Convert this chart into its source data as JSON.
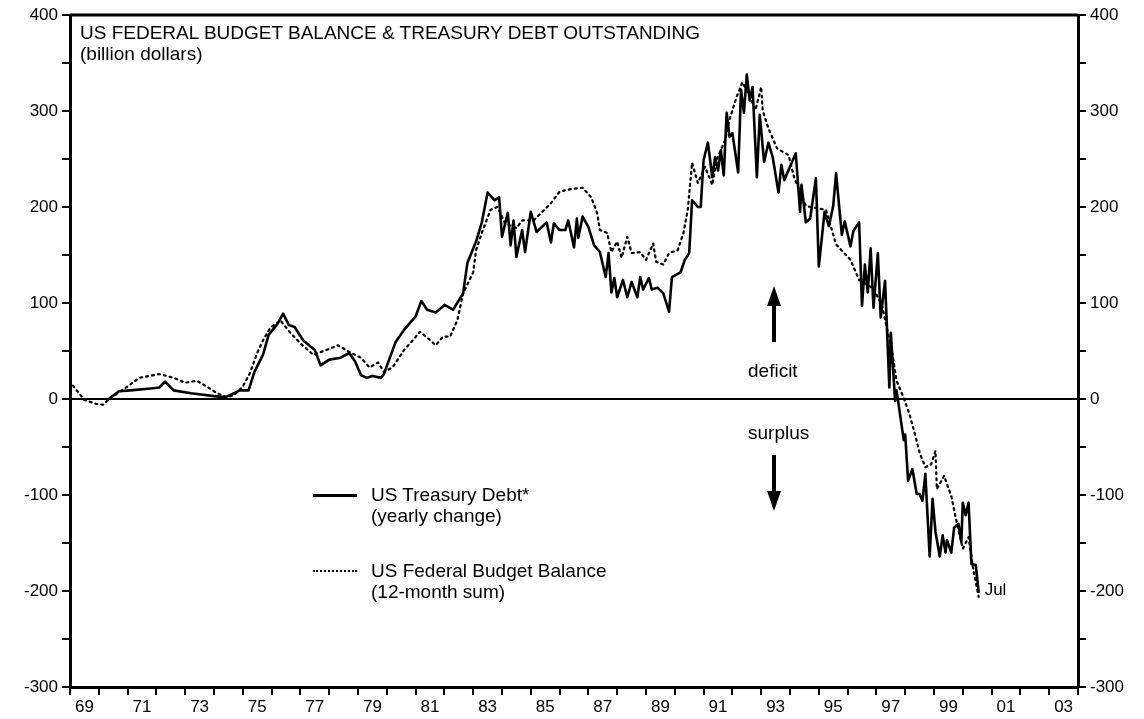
{
  "chart_data": {
    "type": "line",
    "title": "US FEDERAL BUDGET BALANCE & TREASURY DEBT OUTSTANDING",
    "subtitle": "(billion dollars)",
    "annotations": [
      "deficit",
      "surplus",
      {
        "text": "Jul",
        "x": 2000.05,
        "y": -206
      }
    ],
    "legend": "bottom left",
    "grid": false,
    "xlim": [
      1968.5,
      2003.5
    ],
    "xticks": [
      {
        "value": 1968.5,
        "label": null
      },
      {
        "value": 1969,
        "label": "69"
      },
      {
        "value": 1969.5,
        "label": null
      },
      {
        "value": 1970.5,
        "label": null
      },
      {
        "value": 1971,
        "label": "71"
      },
      {
        "value": 1971.5,
        "label": null
      },
      {
        "value": 1972.5,
        "label": null
      },
      {
        "value": 1973,
        "label": "73"
      },
      {
        "value": 1973.5,
        "label": null
      },
      {
        "value": 1974.5,
        "label": null
      },
      {
        "value": 1975,
        "label": "75"
      },
      {
        "value": 1975.5,
        "label": null
      },
      {
        "value": 1976.5,
        "label": null
      },
      {
        "value": 1977,
        "label": "77"
      },
      {
        "value": 1977.5,
        "label": null
      },
      {
        "value": 1978.5,
        "label": null
      },
      {
        "value": 1979,
        "label": "79"
      },
      {
        "value": 1979.5,
        "label": null
      },
      {
        "value": 1980.5,
        "label": null
      },
      {
        "value": 1981,
        "label": "81"
      },
      {
        "value": 1981.5,
        "label": null
      },
      {
        "value": 1982.5,
        "label": null
      },
      {
        "value": 1983,
        "label": "83"
      },
      {
        "value": 1983.5,
        "label": null
      },
      {
        "value": 1984.5,
        "label": null
      },
      {
        "value": 1985,
        "label": "85"
      },
      {
        "value": 1985.5,
        "label": null
      },
      {
        "value": 1986.5,
        "label": null
      },
      {
        "value": 1987,
        "label": "87"
      },
      {
        "value": 1987.5,
        "label": null
      },
      {
        "value": 1988.5,
        "label": null
      },
      {
        "value": 1989,
        "label": "89"
      },
      {
        "value": 1989.5,
        "label": null
      },
      {
        "value": 1990.5,
        "label": null
      },
      {
        "value": 1991,
        "label": "91"
      },
      {
        "value": 1991.5,
        "label": null
      },
      {
        "value": 1992.5,
        "label": null
      },
      {
        "value": 1993,
        "label": "93"
      },
      {
        "value": 1993.5,
        "label": null
      },
      {
        "value": 1994.5,
        "label": null
      },
      {
        "value": 1995,
        "label": "95"
      },
      {
        "value": 1995.5,
        "label": null
      },
      {
        "value": 1996.5,
        "label": null
      },
      {
        "value": 1997,
        "label": "97"
      },
      {
        "value": 1997.5,
        "label": null
      },
      {
        "value": 1998.5,
        "label": null
      },
      {
        "value": 1999,
        "label": "99"
      },
      {
        "value": 1999.5,
        "label": null
      },
      {
        "value": 2000.5,
        "label": null
      },
      {
        "value": 2001,
        "label": "01"
      },
      {
        "value": 2001.5,
        "label": null
      },
      {
        "value": 2002.5,
        "label": null
      },
      {
        "value": 2003,
        "label": "03"
      },
      {
        "value": 2003.5,
        "label": null
      }
    ],
    "ylim": [
      -300,
      400
    ],
    "yticks": [
      -300,
      {
        "value": -250,
        "label": null
      },
      -200,
      {
        "value": -150,
        "label": null
      },
      -100,
      {
        "value": -50,
        "label": null
      },
      0,
      {
        "value": 50,
        "label": null
      },
      100,
      {
        "value": 150,
        "label": null
      },
      200,
      {
        "value": 250,
        "label": null
      },
      300,
      {
        "value": 350,
        "label": null
      },
      400
    ],
    "y2lim": [
      -300,
      400
    ],
    "y2ticks": [
      -300,
      {
        "value": -250,
        "label": null
      },
      -200,
      {
        "value": -150,
        "label": null
      },
      -100,
      {
        "value": -50,
        "label": null
      },
      0,
      {
        "value": 50,
        "label": null
      },
      100,
      {
        "value": 150,
        "label": null
      },
      200,
      {
        "value": 250,
        "label": null
      },
      300,
      {
        "value": 350,
        "label": null
      },
      400
    ],
    "ref_lines": [
      {
        "axis": "y",
        "value": 0,
        "color": "#000000"
      }
    ],
    "series": [
      {
        "name": "US Treasury Debt*\n(yearly change)",
        "color": "#000000",
        "line_style": "solid",
        "x": [
          1969.8,
          1970.2,
          1970.6,
          1971.3,
          1971.6,
          1971.8,
          1972.1,
          1972.7,
          1973.5,
          1973.9,
          1974.4,
          1974.7,
          1974.9,
          1975.2,
          1975.4,
          1975.7,
          1975.9,
          1976.1,
          1976.3,
          1976.6,
          1977.0,
          1977.2,
          1977.5,
          1977.9,
          1978.2,
          1978.4,
          1978.6,
          1978.8,
          1979.0,
          1979.3,
          1979.4,
          1979.8,
          1980.1,
          1980.5,
          1980.7,
          1980.9,
          1981.2,
          1981.5,
          1981.8,
          1982.15,
          1982.3,
          1982.6,
          1982.8,
          1983.0,
          1983.25,
          1983.4,
          1983.5,
          1983.7,
          1983.8,
          1983.9,
          1984.0,
          1984.2,
          1984.3,
          1984.5,
          1984.7,
          1985.05,
          1985.2,
          1985.3,
          1985.5,
          1985.7,
          1985.8,
          1986.0,
          1986.1,
          1986.15,
          1986.3,
          1986.5,
          1986.7,
          1986.9,
          1987.1,
          1987.2,
          1987.3,
          1987.4,
          1987.5,
          1987.7,
          1987.85,
          1988.0,
          1988.2,
          1988.3,
          1988.4,
          1988.6,
          1988.7,
          1988.9,
          1989.1,
          1989.3,
          1989.4,
          1989.7,
          1989.85,
          1990.0,
          1990.1,
          1990.3,
          1990.4,
          1990.5,
          1990.65,
          1990.8,
          1990.9,
          1991.0,
          1991.1,
          1991.2,
          1991.3,
          1991.4,
          1991.5,
          1991.7,
          1991.8,
          1991.9,
          1992.0,
          1992.1,
          1992.2,
          1992.35,
          1992.45,
          1992.6,
          1992.75,
          1992.9,
          1993.1,
          1993.2,
          1993.3,
          1993.5,
          1993.7,
          1993.85,
          1993.9,
          1994.05,
          1994.2,
          1994.4,
          1994.5,
          1994.7,
          1994.85,
          1995.0,
          1995.1,
          1995.3,
          1995.4,
          1995.6,
          1995.7,
          1995.9,
          1996.0,
          1996.1,
          1996.2,
          1996.3,
          1996.4,
          1996.55,
          1996.65,
          1996.8,
          1996.95,
          1997.0,
          1997.15,
          1997.2,
          1997.45,
          1997.5,
          1997.6,
          1997.75,
          1997.9,
          1998.0,
          1998.1,
          1998.2,
          1998.35,
          1998.45,
          1998.55,
          1998.7,
          1998.8,
          1998.9,
          1998.95,
          1999.1,
          1999.2,
          1999.35,
          1999.45,
          1999.5,
          1999.6,
          1999.7,
          1999.8,
          1999.95,
          2000.05
        ],
        "values": [
          -1,
          8,
          9,
          11,
          12,
          18,
          9,
          6,
          3,
          2,
          9,
          9,
          28,
          46,
          67,
          78,
          89,
          77,
          75,
          61,
          51,
          35,
          41,
          43,
          48,
          39,
          25,
          22,
          24,
          22,
          26,
          59,
          72,
          86,
          102,
          93,
          90,
          98,
          93,
          110,
          142,
          164,
          184,
          215,
          207,
          210,
          169,
          194,
          160,
          186,
          148,
          176,
          153,
          195,
          174,
          184,
          163,
          183,
          176,
          176,
          186,
          158,
          188,
          168,
          190,
          179,
          160,
          153,
          127,
          152,
          111,
          126,
          106,
          124,
          106,
          122,
          106,
          127,
          114,
          126,
          114,
          116,
          110,
          91,
          127,
          132,
          145,
          152,
          207,
          200,
          200,
          249,
          267,
          231,
          252,
          238,
          259,
          233,
          298,
          273,
          277,
          236,
          322,
          298,
          338,
          311,
          325,
          231,
          296,
          247,
          267,
          252,
          215,
          244,
          228,
          242,
          256,
          195,
          223,
          184,
          188,
          230,
          138,
          195,
          180,
          201,
          235,
          171,
          185,
          159,
          175,
          184,
          97,
          140,
          111,
          157,
          95,
          152,
          85,
          123,
          12,
          69,
          -2,
          9,
          -43,
          -37,
          -85,
          -73,
          -99,
          -99,
          -106,
          -78,
          -164,
          -104,
          -138,
          -164,
          -142,
          -160,
          -147,
          -160,
          -134,
          -130,
          -149,
          -108,
          -121,
          -108,
          -172,
          -173,
          -201
        ]
      },
      {
        "name": "US Federal Budget Balance\n(12-month sum)",
        "color": "#000000",
        "line_style": "dotted",
        "x": [
          1968.6,
          1969.0,
          1969.4,
          1969.65,
          1969.9,
          1970.5,
          1970.9,
          1971.6,
          1972.1,
          1972.5,
          1972.9,
          1973.25,
          1973.6,
          1973.95,
          1974.2,
          1974.5,
          1974.75,
          1975.0,
          1975.2,
          1975.45,
          1975.8,
          1976.15,
          1976.5,
          1976.95,
          1977.4,
          1977.8,
          1978.2,
          1978.6,
          1978.9,
          1979.2,
          1979.4,
          1979.7,
          1980.1,
          1980.4,
          1980.65,
          1980.9,
          1981.2,
          1981.45,
          1981.7,
          1981.95,
          1982.15,
          1982.5,
          1982.6,
          1982.8,
          1983.1,
          1983.35,
          1983.6,
          1984.0,
          1984.2,
          1984.6,
          1984.9,
          1985.2,
          1985.5,
          1985.95,
          1986.3,
          1986.6,
          1986.8,
          1986.9,
          1987.15,
          1987.3,
          1987.5,
          1987.65,
          1987.85,
          1988.0,
          1988.3,
          1988.5,
          1988.75,
          1988.85,
          1989.1,
          1989.3,
          1989.6,
          1989.8,
          1989.95,
          1990.1,
          1990.3,
          1990.55,
          1990.8,
          1990.95,
          1991.25,
          1991.4,
          1991.65,
          1991.85,
          1992.1,
          1992.3,
          1992.5,
          1992.55,
          1992.75,
          1993.05,
          1993.45,
          1993.65,
          1994.05,
          1994.75,
          1995.1,
          1995.6,
          1995.9,
          1996.4,
          1996.7,
          1997.05,
          1997.2,
          1997.45,
          1997.65,
          1997.85,
          1998.0,
          1998.2,
          1998.4,
          1998.55,
          1998.6,
          1998.85,
          1999.1,
          1999.25,
          1999.5,
          1999.7,
          1999.85,
          2000.05
        ],
        "values": [
          14,
          -1,
          -5,
          -6,
          1,
          13,
          22,
          26,
          22,
          17,
          19,
          13,
          6,
          2,
          4,
          13,
          27,
          48,
          61,
          74,
          82,
          69,
          58,
          46,
          51,
          56,
          49,
          43,
          33,
          38,
          28,
          33,
          51,
          61,
          70,
          64,
          56,
          65,
          65,
          82,
          110,
          132,
          155,
          173,
          197,
          200,
          183,
          178,
          186,
          186,
          195,
          204,
          216,
          219,
          220,
          210,
          194,
          176,
          173,
          153,
          164,
          147,
          169,
          152,
          153,
          145,
          162,
          143,
          140,
          152,
          155,
          173,
          197,
          246,
          225,
          242,
          223,
          249,
          270,
          291,
          315,
          330,
          315,
          301,
          325,
          301,
          282,
          261,
          254,
          230,
          201,
          197,
          161,
          145,
          124,
          115,
          97,
          48,
          19,
          1,
          -16,
          -38,
          -56,
          -71,
          -68,
          -54,
          -94,
          -80,
          -101,
          -123,
          -156,
          -144,
          -175,
          -206
        ]
      }
    ]
  }
}
